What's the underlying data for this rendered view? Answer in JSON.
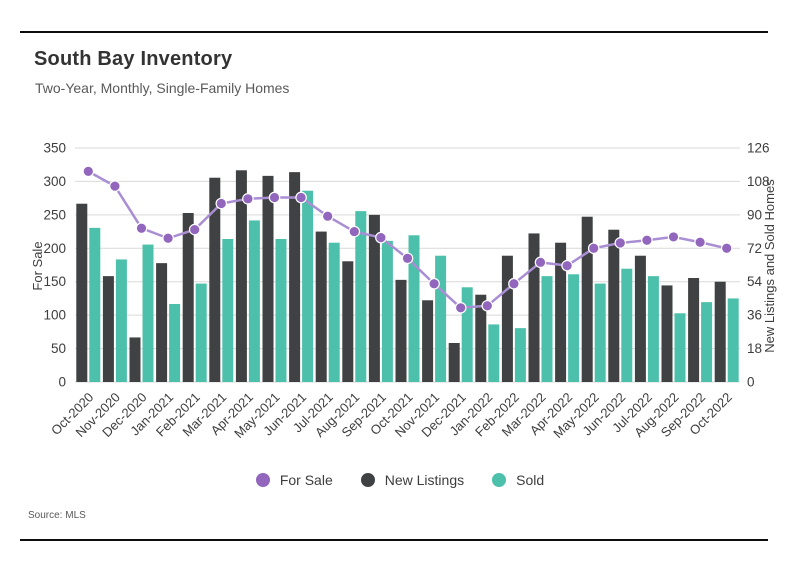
{
  "header": {
    "title": "South Bay Inventory",
    "subtitle": "Two-Year, Monthly, Single-Family Homes"
  },
  "footer": {
    "source": "Source: MLS"
  },
  "legend": {
    "items": [
      {
        "label": "For Sale",
        "color": "#9166bc"
      },
      {
        "label": "New Listings",
        "color": "#3f4142"
      },
      {
        "label": "Sold",
        "color": "#4cc0aa"
      }
    ]
  },
  "colors": {
    "line": "#a98ed3",
    "marker": "#9166bc",
    "new_listings_bar": "#3f4142",
    "sold_bar": "#4cc0aa",
    "gridline": "#d9d9d9",
    "axis_text": "#3d3d3d",
    "muted_text": "#595959",
    "border": "#0d0d0d"
  },
  "chart_data": {
    "type": "combo",
    "title": "South Bay Inventory",
    "subtitle": "Two-Year, Monthly, Single-Family Homes",
    "categories": [
      "Oct-2020",
      "Nov-2020",
      "Dec-2020",
      "Jan-2021",
      "Feb-2021",
      "Mar-2021",
      "Apr-2021",
      "May-2021",
      "Jun-2021",
      "Jul-2021",
      "Aug-2021",
      "Sep-2021",
      "Oct-2021",
      "Nov-2021",
      "Dec-2021",
      "Jan-2022",
      "Feb-2022",
      "Mar-2022",
      "Apr-2022",
      "May-2022",
      "Jun-2022",
      "Jul-2022",
      "Aug-2022",
      "Sep-2022",
      "Oct-2022"
    ],
    "series": [
      {
        "name": "For Sale",
        "type": "line",
        "axis": "left",
        "values": [
          315,
          293,
          230,
          215,
          228,
          267,
          274,
          276,
          276,
          248,
          225,
          216,
          185,
          147,
          111,
          114,
          147,
          179,
          174,
          200,
          208,
          212,
          217,
          209,
          200
        ]
      },
      {
        "name": "New Listings",
        "type": "bar",
        "axis": "right",
        "values": [
          96,
          57,
          24,
          64,
          91,
          110,
          114,
          111,
          113,
          81,
          65,
          90,
          55,
          44,
          21,
          47,
          68,
          80,
          75,
          89,
          82,
          68,
          52,
          56,
          54
        ]
      },
      {
        "name": "Sold",
        "type": "bar",
        "axis": "right",
        "values": [
          83,
          66,
          74,
          42,
          53,
          77,
          87,
          77,
          103,
          75,
          92,
          76,
          79,
          68,
          51,
          31,
          29,
          57,
          58,
          53,
          61,
          57,
          37,
          43,
          45
        ]
      }
    ],
    "left_axis": {
      "title": "For Sale",
      "min": 0,
      "max": 350,
      "ticks": [
        0,
        50,
        100,
        150,
        200,
        250,
        300,
        350
      ]
    },
    "right_axis": {
      "title": "New Listings and Sold Homes",
      "min": 0,
      "max": 126,
      "ticks": [
        0,
        18,
        36,
        54,
        72,
        90,
        108,
        126
      ]
    },
    "grid": true,
    "legend_position": "bottom"
  }
}
